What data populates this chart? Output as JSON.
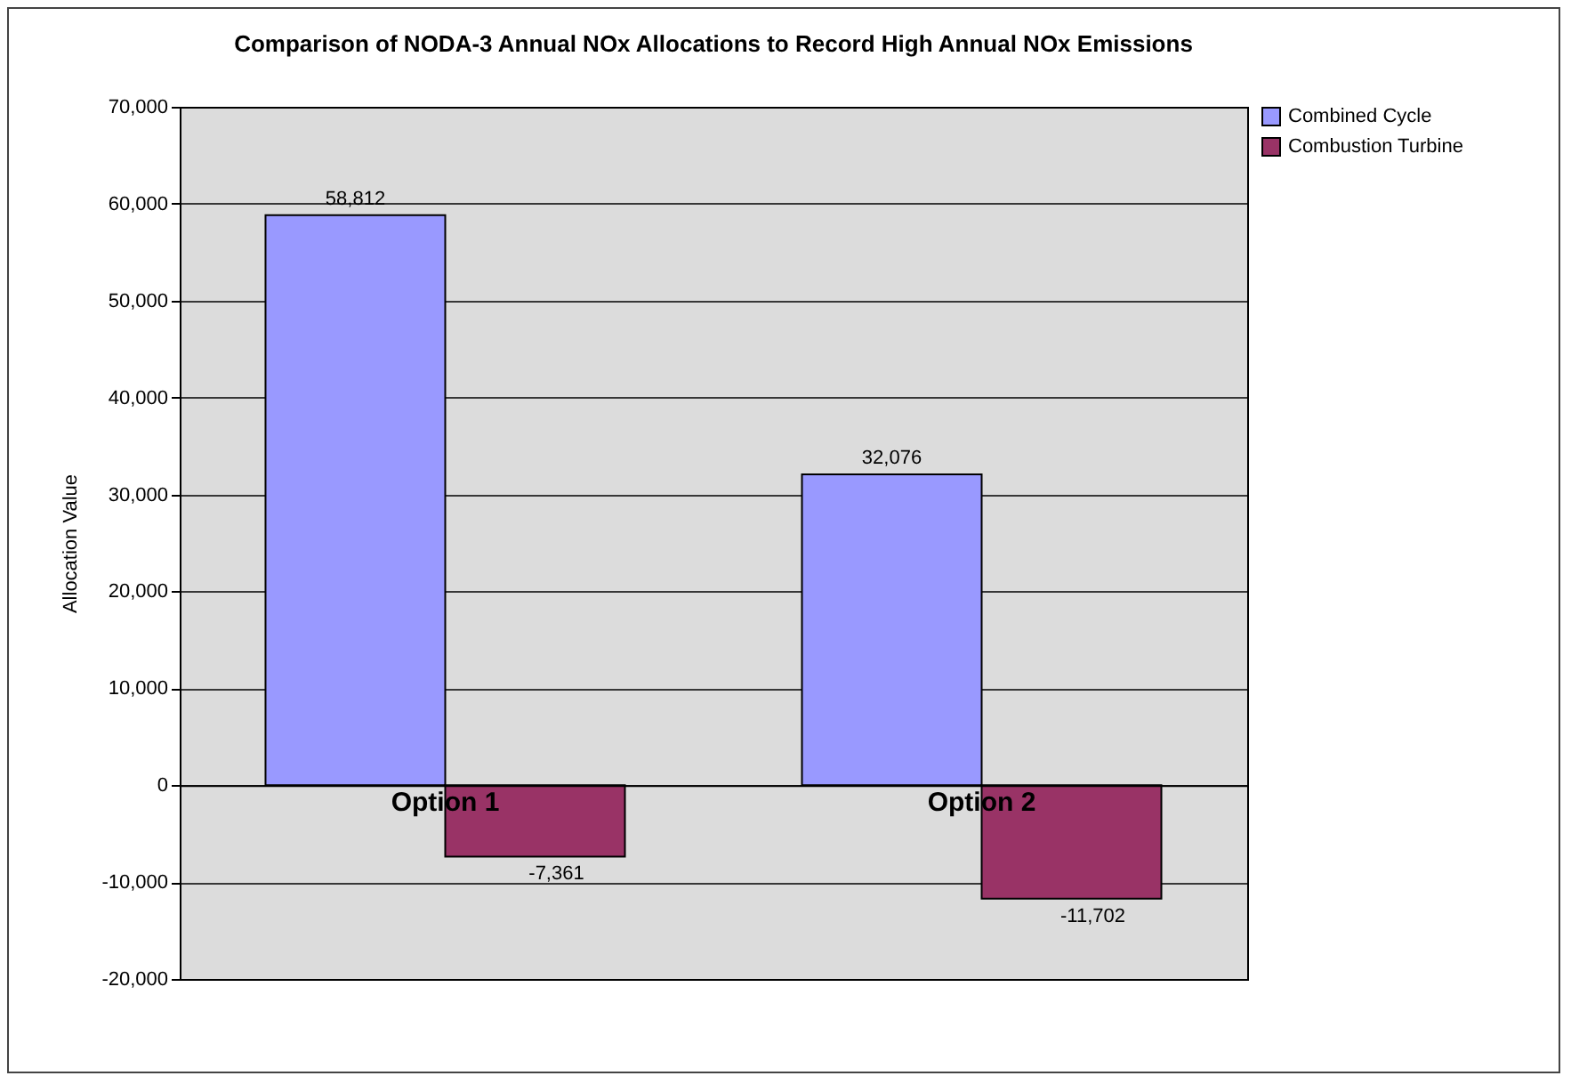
{
  "chart_data": {
    "type": "bar",
    "title": "Comparison of NODA-3 Annual NOx Allocations to Record High Annual NOx Emissions",
    "ylabel": "Allocation Value",
    "categories": [
      "Option 1",
      "Option 2"
    ],
    "series": [
      {
        "name": "Combined Cycle",
        "color": "#9999ff",
        "values": [
          58812,
          32076
        ],
        "value_labels": [
          "58,812",
          "32,076"
        ]
      },
      {
        "name": "Combustion Turbine",
        "color": "#993366",
        "values": [
          -7361,
          -11702
        ],
        "value_labels": [
          "-7,361",
          "-11,702"
        ]
      }
    ],
    "ylim": [
      -20000,
      70000
    ],
    "yticks": [
      {
        "value": -20000,
        "label": "-20,000"
      },
      {
        "value": -10000,
        "label": "-10,000"
      },
      0,
      {
        "value": 10000,
        "label": "10,000"
      },
      {
        "value": 20000,
        "label": "20,000"
      },
      {
        "value": 30000,
        "label": "30,000"
      },
      {
        "value": 40000,
        "label": "40,000"
      },
      {
        "value": 50000,
        "label": "50,000"
      },
      {
        "value": 60000,
        "label": "60,000"
      },
      {
        "value": 70000,
        "label": "70,000"
      }
    ],
    "grid": "y",
    "legend": "right"
  }
}
